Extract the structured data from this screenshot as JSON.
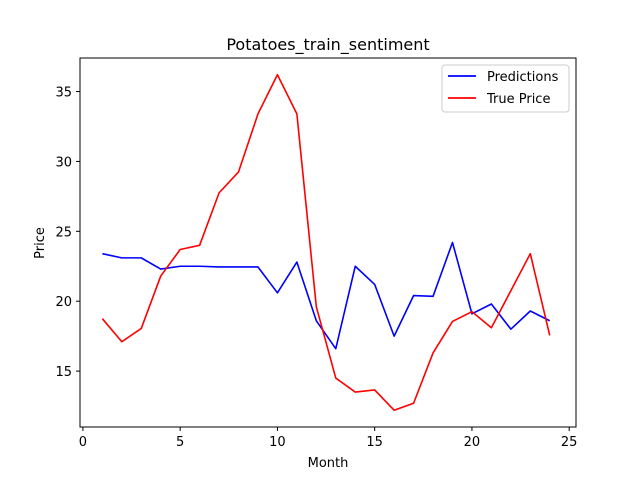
{
  "chart_data": {
    "type": "line",
    "title": "Potatoes_train_sentiment",
    "xlabel": "Month",
    "ylabel": "Price",
    "xlim": [
      -0.15,
      25.35
    ],
    "ylim": [
      11.0,
      37.4
    ],
    "xticks": [
      0,
      5,
      10,
      15,
      20,
      25
    ],
    "yticks": [
      15,
      20,
      25,
      30,
      35
    ],
    "grid": false,
    "legend_position": "upper right",
    "x": [
      1,
      2,
      3,
      4,
      5,
      6,
      7,
      8,
      9,
      10,
      11,
      12,
      13,
      14,
      15,
      16,
      17,
      18,
      19,
      20,
      21,
      22,
      23,
      24
    ],
    "series": [
      {
        "name": "Predictions",
        "color": "#0000ff",
        "values": [
          23.4,
          23.1,
          23.1,
          22.3,
          22.5,
          22.5,
          22.45,
          22.45,
          22.45,
          20.6,
          22.8,
          18.6,
          16.6,
          22.5,
          21.2,
          17.5,
          20.4,
          20.35,
          24.2,
          19.1,
          19.8,
          18.0,
          19.3,
          18.6
        ]
      },
      {
        "name": "True Price",
        "color": "#ff0000",
        "values": [
          18.75,
          17.1,
          18.05,
          21.8,
          23.7,
          24.0,
          27.75,
          29.25,
          33.4,
          36.2,
          33.4,
          19.6,
          14.5,
          13.5,
          13.65,
          12.2,
          12.7,
          16.3,
          18.55,
          19.25,
          18.1,
          20.75,
          23.4,
          17.55
        ]
      }
    ]
  }
}
